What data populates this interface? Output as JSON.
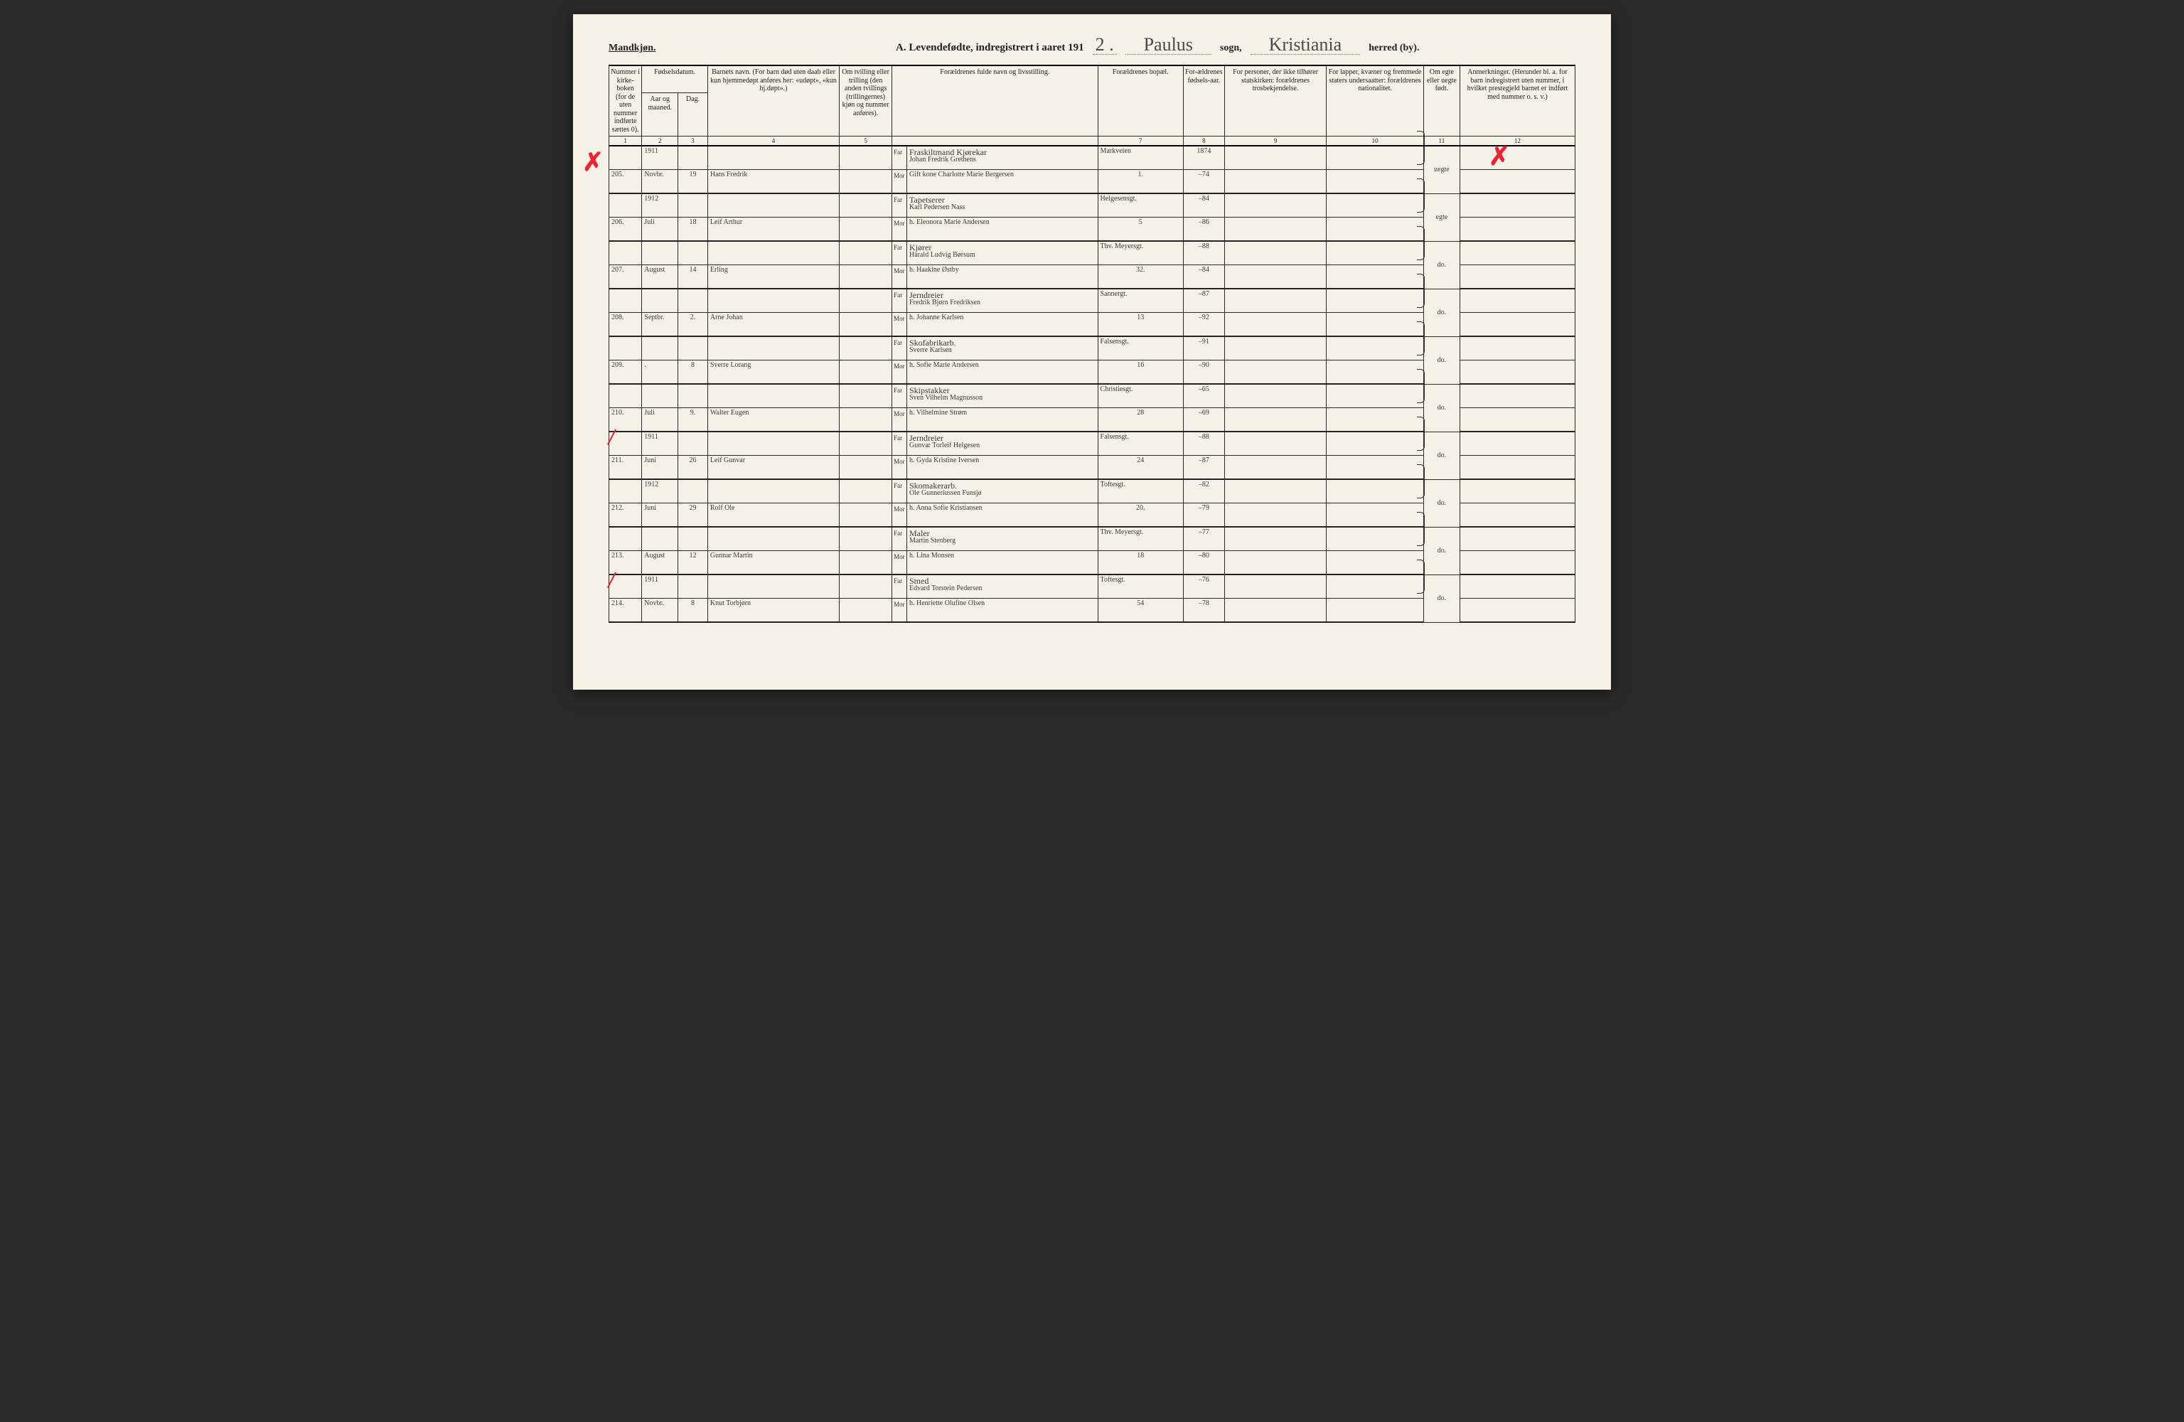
{
  "gender": "Mandkjøn.",
  "title": {
    "prefix": "A.  Levendefødte, indregistrert i aaret 191",
    "year_suffix": "2 .",
    "parish_handwritten": "Paulus",
    "parish_word": "sogn,",
    "district_handwritten": "Kristiania",
    "district_word": "herred (by)."
  },
  "columns": {
    "c1": "Nummer i kirke-boken (for de uten nummer indførte sættes 0).",
    "c2a": "Fødselsdatum.",
    "c2": "Aar og maaned.",
    "c3": "Dag.",
    "c4": "Barnets navn.\n(For barn død uten daab eller kun hjemmedøpt anføres her: «udøpt», «kun hj.døpt».)",
    "c5": "Om tvilling eller trilling (den anden tvillings (trillingernes) kjøn og nummer anføres).",
    "c6": "Forældrenes fulde navn og livsstilling.",
    "c7": "Forældrenes bopæl.",
    "c8": "For-ældrenes fødsels-aar.",
    "c9": "For personer, der ikke tilhører statskirken: forældrenes trosbekjendelse.",
    "c10": "For lapper, kvæner og fremmede staters undersaatter: forældrenes nationalitet.",
    "c11": "Om egte eller uegte født.",
    "c12": "Anmerkninger.\n(Herunder bl. a. for barn indregistrert uten nummer, i hvilket prestegjeld barnet er indført med nummer o. s. v.)"
  },
  "colnums": [
    "1",
    "2",
    "3",
    "4",
    "5",
    "",
    "7",
    "8",
    "9",
    "10",
    "11",
    "12"
  ],
  "far": "Far",
  "mor": "Mor",
  "rows": [
    {
      "no": "205",
      "year": "1911",
      "month": "Novbr.",
      "day": "19",
      "child": "Hans Fredrik",
      "occ": "Fraskiltmand Kjørekar",
      "far": "Johan Fredrik Grethens",
      "mor": "Gift kone  Charlotte Marie Bergersen",
      "addr": "Markveien",
      "addr2": "1.",
      "fy": "1874",
      "my": "–74",
      "legit": "uegte",
      "redX": true
    },
    {
      "no": "206",
      "year": "1912",
      "month": "Juli",
      "day": "18",
      "child": "Leif Arthur",
      "occ": "Tapetserer",
      "far": "Karl Pedersen Nass",
      "mor": "h. Eleonora Marie Andersen",
      "addr": "Helgesensgt.",
      "addr2": "5",
      "fy": "–84",
      "my": "–86",
      "legit": "egte"
    },
    {
      "no": "207",
      "year": "",
      "month": "August",
      "day": "14",
      "child": "Erling",
      "occ": "Kjører",
      "far": "Harald Ludvig Børsum",
      "mor": "h. Haakine Østby",
      "addr": "Thv. Meyersgt.",
      "addr2": "32.",
      "fy": "–88",
      "my": "–84",
      "legit": "do."
    },
    {
      "no": "208",
      "year": "",
      "month": "Septbr.",
      "day": "2.",
      "child": "Arne Johan",
      "occ": "Jerndreier",
      "far": "Fredrik Bjørn Fredriksen",
      "mor": "h. Johanne Karlsen",
      "addr": "Sannergt.",
      "addr2": "13",
      "fy": "–87",
      "my": "–92",
      "legit": "do."
    },
    {
      "no": "209",
      "year": "",
      "month": ".",
      "day": "8",
      "child": "Sverre Lorang",
      "occ": "Skofabrikarb.",
      "far": "Sverre Karlsen",
      "mor": "h. Sofie Marie Andersen",
      "addr": "Falsensgt.",
      "addr2": "16",
      "fy": "–91",
      "my": "–90",
      "legit": "do."
    },
    {
      "no": "210",
      "year": "",
      "month": "Juli",
      "day": "9.",
      "child": "Walter Eugen",
      "occ": "Skipstakker",
      "far": "Sven Vilhelm Magnusson",
      "mor": "h. Vilhelmine Strøm",
      "addr": "Christiesgt.",
      "addr2": "28",
      "fy": "–65",
      "my": "–69",
      "legit": "do."
    },
    {
      "no": "211",
      "year": "1911",
      "month": "Juni",
      "day": "26",
      "child": "Leif Gunvar",
      "occ": "Jerndreier",
      "far": "Gunvar Torleif Helgesen",
      "mor": "h. Gyda Kristine Iversen",
      "addr": "Falsensgt.",
      "addr2": "24",
      "fy": "–88",
      "my": "–87",
      "legit": "do.",
      "redTick": true
    },
    {
      "no": "212",
      "year": "1912",
      "month": "Juni",
      "day": "29",
      "child": "Rolf Ole",
      "occ": "Skomakerarb.",
      "far": "Ole Gunneriussen Funsjø",
      "mor": "h. Anna Sofie Kristiansen",
      "addr": "Toftesgt.",
      "addr2": "20.",
      "fy": "–82",
      "my": "–79",
      "legit": "do."
    },
    {
      "no": "213",
      "year": "",
      "month": "August",
      "day": "12",
      "child": "Gunnar Martin",
      "occ": "Maler",
      "far": "Martin Stenberg",
      "mor": "h. Lina Monsen",
      "addr": "Thv. Meyersgt.",
      "addr2": "18",
      "fy": "–77",
      "my": "–80",
      "legit": "do."
    },
    {
      "no": "214",
      "year": "1911",
      "month": "Novbr.",
      "day": "8",
      "child": "Knut Torbjørn",
      "occ": "Smed",
      "far": "Edvard Torstein Pedersen",
      "mor": "h. Henriette Olufine Olsen",
      "addr": "Toftesgt.",
      "addr2": "54",
      "fy": "–76",
      "my": "–78",
      "legit": "do.",
      "redTick": true
    }
  ],
  "colors": {
    "paper": "#f4f1e6",
    "ink": "#222222",
    "red": "#ee2233",
    "script": "#4a4a4a"
  }
}
